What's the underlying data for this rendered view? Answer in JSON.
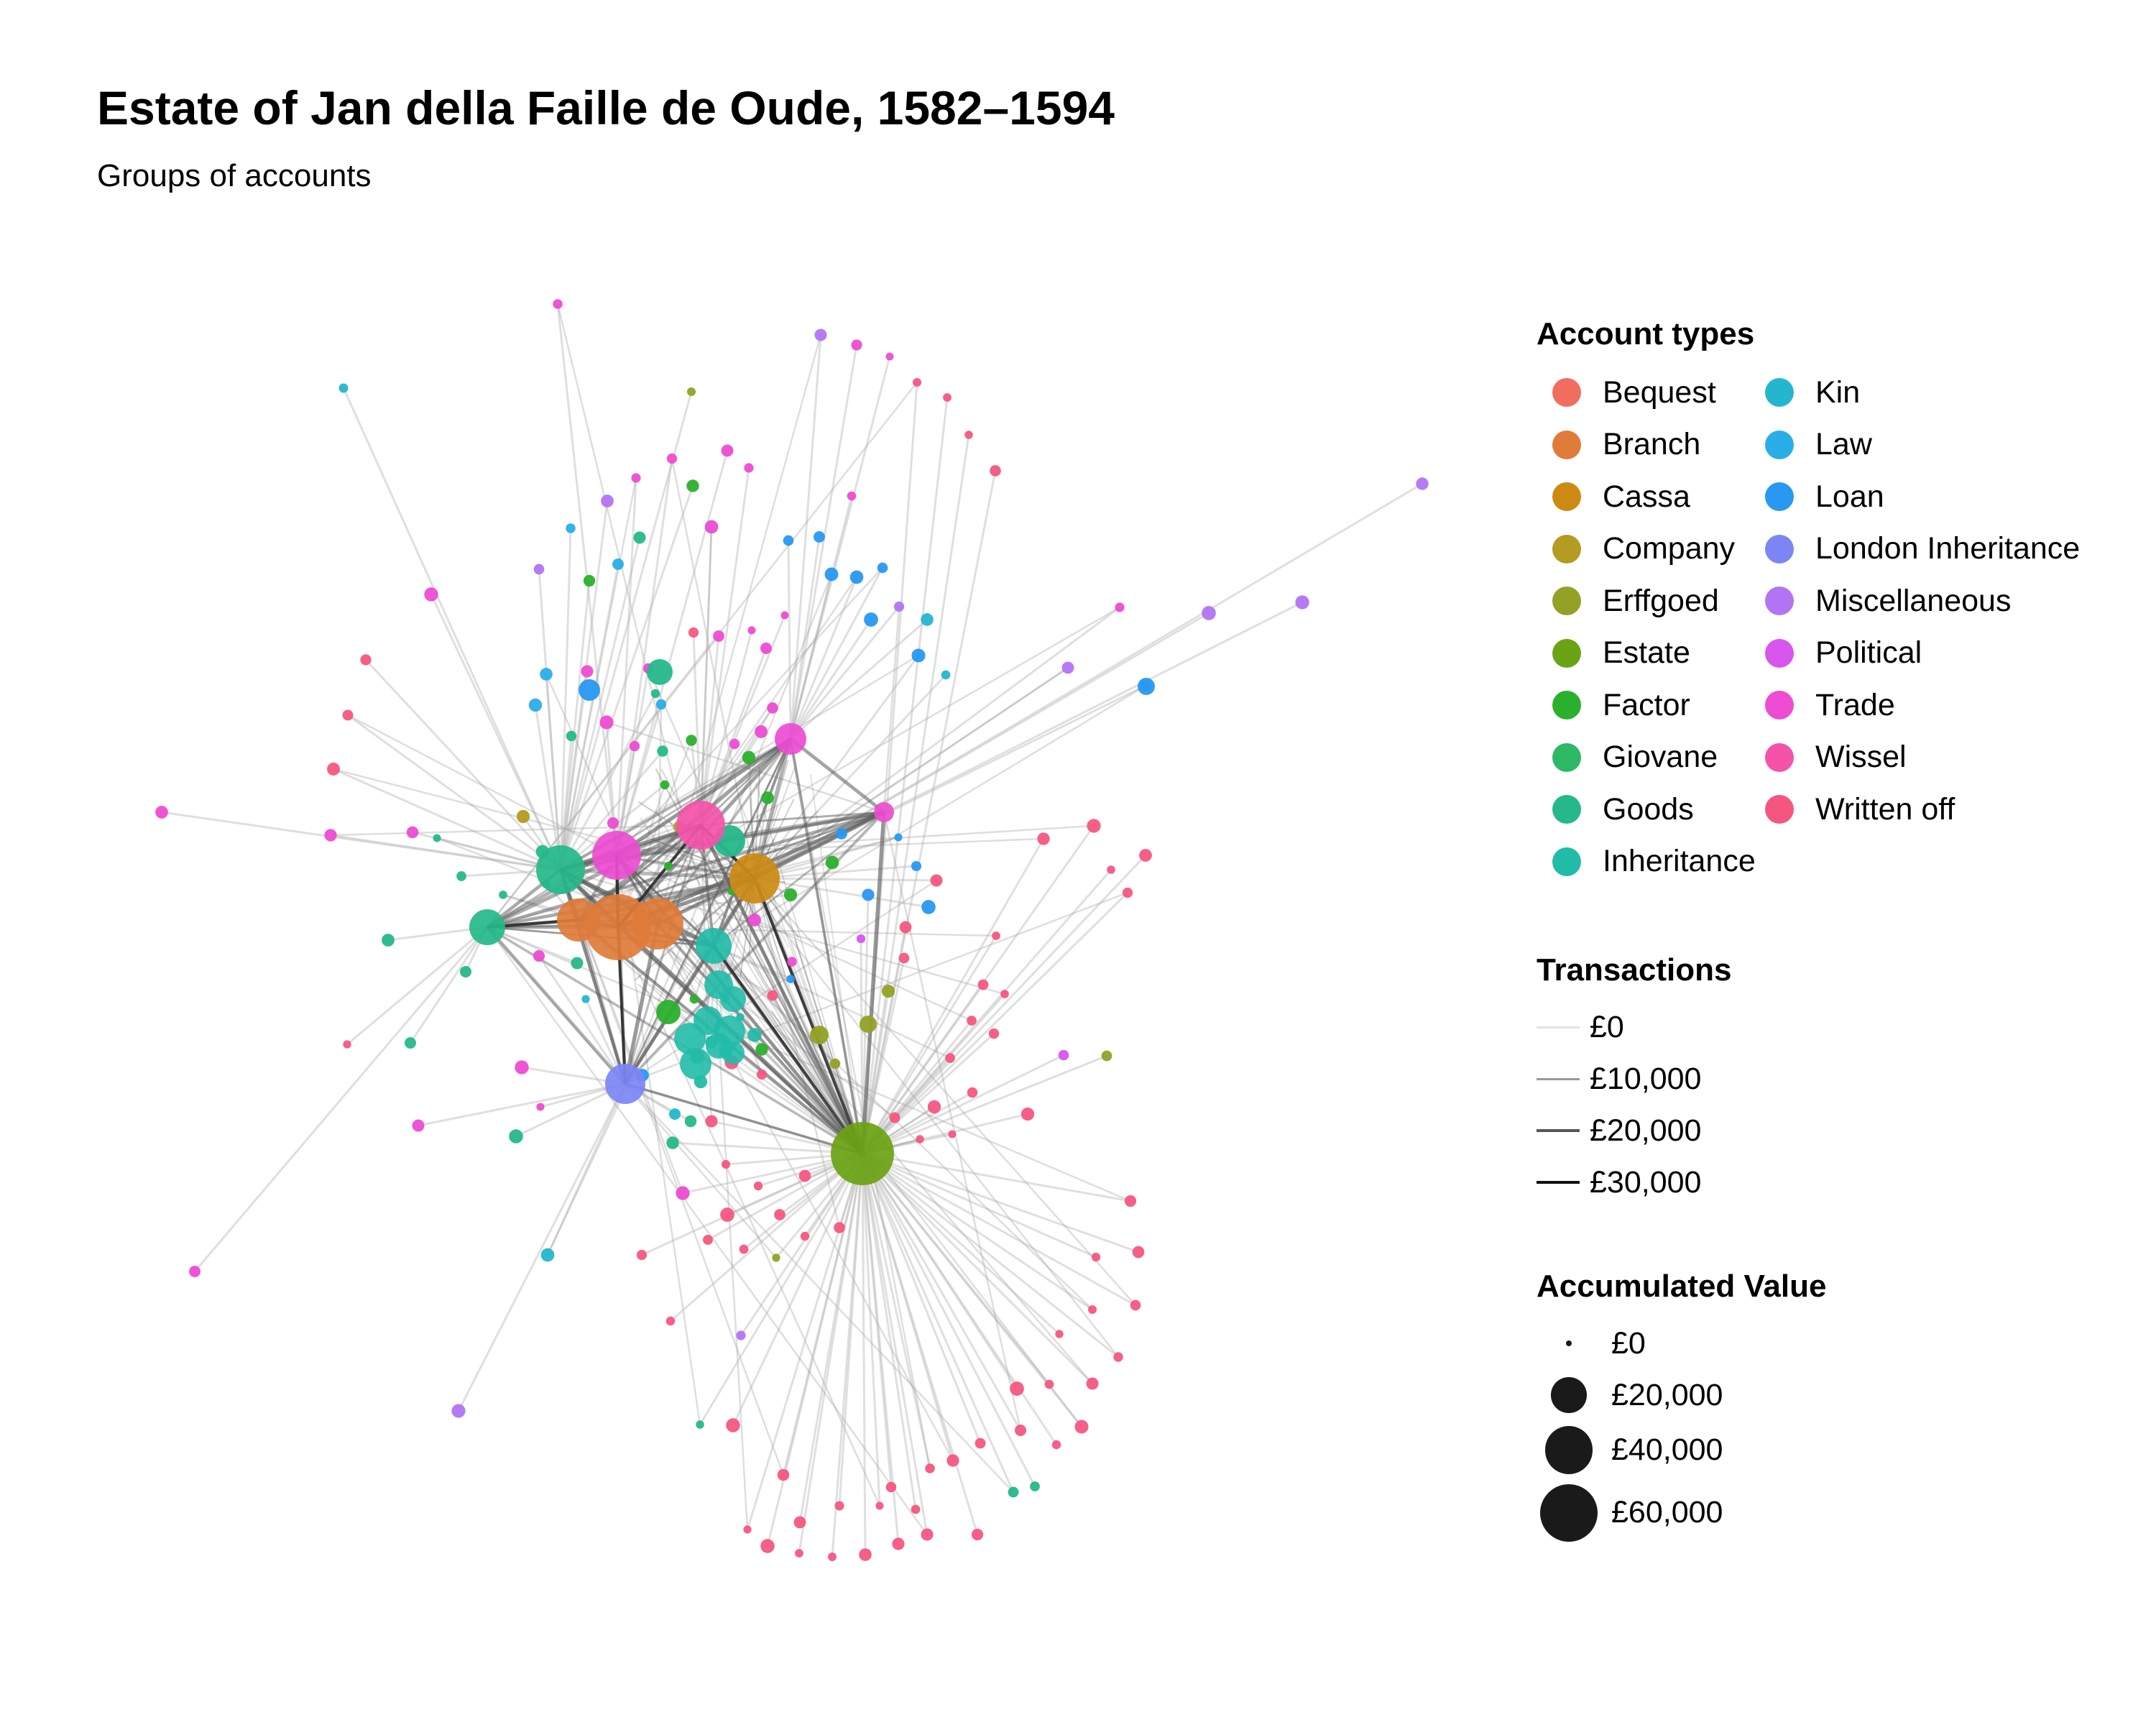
{
  "title": "Estate of Jan della Faille de Oude, 1582–1594",
  "subtitle": "Groups of accounts",
  "legend": {
    "account_types_title": "Account types",
    "account_types": [
      {
        "label": "Bequest",
        "color": "#f16e5e"
      },
      {
        "label": "Branch",
        "color": "#e07b39"
      },
      {
        "label": "Cassa",
        "color": "#cc8a12"
      },
      {
        "label": "Company",
        "color": "#b49b22"
      },
      {
        "label": "Erffgoed",
        "color": "#94a026"
      },
      {
        "label": "Estate",
        "color": "#6aa314"
      },
      {
        "label": "Factor",
        "color": "#2bb02d"
      },
      {
        "label": "Giovane",
        "color": "#2db866"
      },
      {
        "label": "Goods",
        "color": "#25b88a"
      },
      {
        "label": "Inheritance",
        "color": "#22bba8"
      },
      {
        "label": "Kin",
        "color": "#25b6cf"
      },
      {
        "label": "Law",
        "color": "#2aaee8"
      },
      {
        "label": "Loan",
        "color": "#2898f2"
      },
      {
        "label": "London Inheritance",
        "color": "#7b86f4"
      },
      {
        "label": "Miscellaneous",
        "color": "#b274f3"
      },
      {
        "label": "Political",
        "color": "#d855ee"
      },
      {
        "label": "Trade",
        "color": "#ed4cd3"
      },
      {
        "label": "Wissel",
        "color": "#f552a9"
      },
      {
        "label": "Written off",
        "color": "#f5567f"
      }
    ],
    "transactions_title": "Transactions",
    "transactions": [
      {
        "label": "£0",
        "value": 0
      },
      {
        "label": "£10,000",
        "value": 10000
      },
      {
        "label": "£20,000",
        "value": 20000
      },
      {
        "label": "£30,000",
        "value": 30000
      }
    ],
    "value_title": "Accumulated Value",
    "values": [
      {
        "label": "£0",
        "value": 0
      },
      {
        "label": "£20,000",
        "value": 20000
      },
      {
        "label": "£40,000",
        "value": 40000
      },
      {
        "label": "£60,000",
        "value": 60000
      }
    ]
  }
}
